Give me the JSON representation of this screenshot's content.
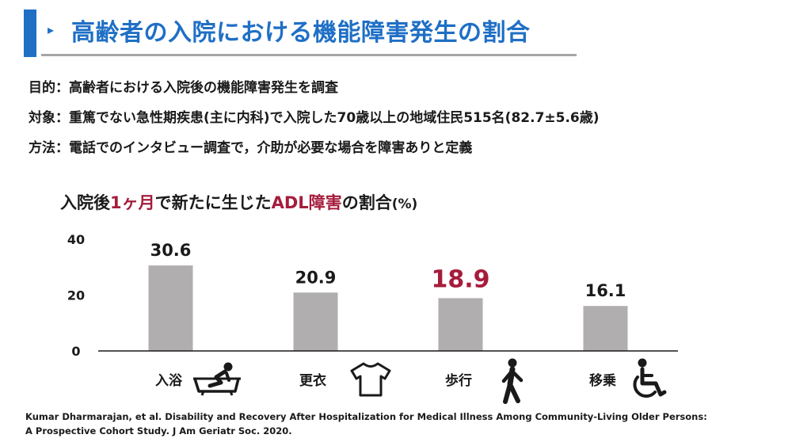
{
  "header": {
    "arrow_glyph": "▸",
    "title": "高齢者の入院における機能障害発生の割合",
    "accent_color": "#1f6fc5"
  },
  "info": [
    {
      "label": "目的",
      "sep": "：",
      "text": "高齢者における入院後の機能障害発生を調査"
    },
    {
      "label": "対象",
      "sep": "：",
      "text": "重篤でない急性期疾患(主に内科)で入院した70歳以上の地域住民515名(82.7±5.6歳)"
    },
    {
      "label": "方法",
      "sep": "：",
      "text": "電話でのインタビュー調査で，介助が必要な場合を障害ありと定義"
    }
  ],
  "chart_title": {
    "part1": "入院後",
    "part2": "1ヶ月",
    "part3": "で新たに生じた",
    "part4": "ADL障害",
    "part5": "の割合",
    "unit": "(%)",
    "highlight_color": "#a61c3c"
  },
  "chart_data": {
    "type": "bar",
    "categories": [
      "入浴",
      "更衣",
      "歩行",
      "移乗"
    ],
    "values": [
      30.6,
      20.9,
      18.9,
      16.1
    ],
    "value_labels": [
      "30.6",
      "20.9",
      "18.9",
      "16.1"
    ],
    "highlight_index": 2,
    "ylim": [
      0,
      40
    ],
    "yticks": [
      "0",
      "20",
      "40"
    ],
    "ytick_values": [
      0,
      20,
      40
    ],
    "bar_color": "#b0aeae",
    "highlight_color": "#a61c3c",
    "grid": false,
    "icons": [
      "bath-icon",
      "shirt-icon",
      "walking-person-icon",
      "wheelchair-icon"
    ]
  },
  "citation": {
    "line1": "Kumar Dharmarajan, et al. Disability and Recovery After Hospitalization for Medical Illness Among Community-Living Older Persons:",
    "line2": "A Prospective Cohort Study. J Am Geriatr Soc. 2020."
  }
}
